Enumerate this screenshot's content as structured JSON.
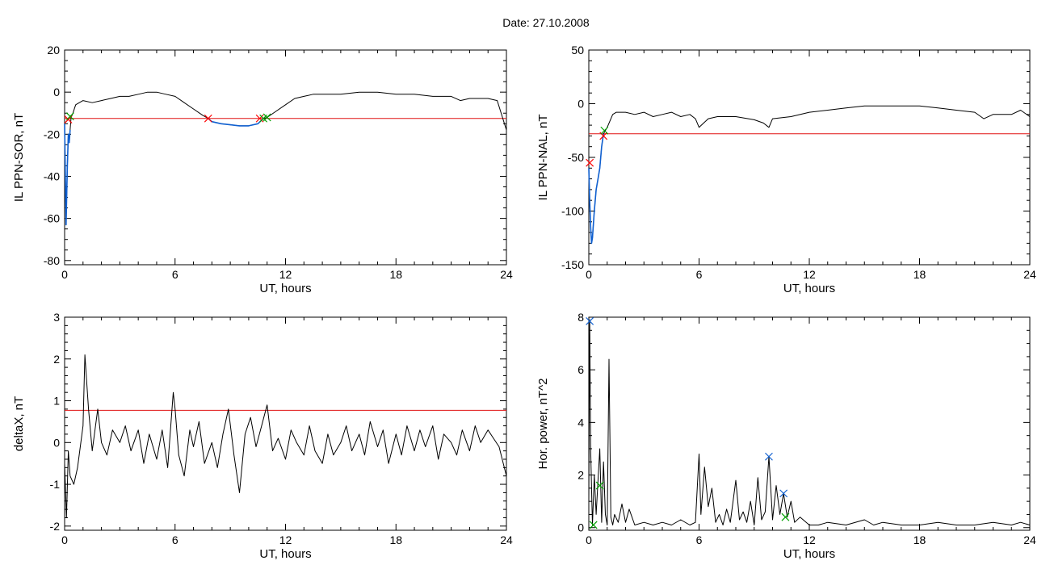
{
  "page": {
    "title": "Date:  27.10.2008"
  },
  "chart_data": [
    {
      "type": "line",
      "xlabel": "UT, hours",
      "ylabel": "IL PPN-SOR, nT",
      "xlim": [
        0,
        24
      ],
      "ylim": [
        -82,
        20
      ],
      "xticks": [
        0,
        6,
        12,
        18,
        24
      ],
      "yticks": [
        -80,
        -60,
        -40,
        -20,
        0,
        20
      ],
      "grid": false,
      "threshold": -12.5,
      "series": [
        {
          "role": "main",
          "color": "#000000",
          "x": [
            0.0,
            0.08,
            0.15,
            0.2,
            0.25,
            0.3,
            0.35,
            0.45,
            0.6,
            0.8,
            1.0,
            1.5,
            2.0,
            2.5,
            3.0,
            3.5,
            4.0,
            4.5,
            5.0,
            5.5,
            6.0,
            6.5,
            7.0,
            7.5,
            7.8,
            8.0,
            8.5,
            9.0,
            9.5,
            10.0,
            10.5,
            10.8,
            11.0,
            11.5,
            12.0,
            12.5,
            13.0,
            13.5,
            14.0,
            15.0,
            16.0,
            17.0,
            18.0,
            19.0,
            20.0,
            21.0,
            21.5,
            22.0,
            23.0,
            23.5,
            24.0
          ],
          "y": [
            -15,
            -63,
            -35,
            -20,
            -24,
            -18,
            -12,
            -10,
            -6,
            -5,
            -4,
            -5,
            -4,
            -3,
            -2,
            -2,
            -1,
            0,
            0,
            -1,
            -2,
            -5,
            -8,
            -11,
            -12.5,
            -14,
            -15,
            -15.5,
            -16,
            -16,
            -15,
            -12.5,
            -12,
            -9,
            -6,
            -3,
            -2,
            -1,
            -1,
            -1,
            0,
            0,
            -1,
            -1,
            -2,
            -2,
            -4,
            -3,
            -3,
            -4,
            -18
          ]
        },
        {
          "role": "selection",
          "color": "#1060d0",
          "x": [
            0.0,
            0.08,
            0.15,
            0.2,
            0.25,
            0.3
          ],
          "y": [
            -15,
            -63,
            -35,
            -20,
            -24,
            -18
          ]
        },
        {
          "role": "selection",
          "color": "#1060d0",
          "x": [
            7.8,
            8.0,
            8.5,
            9.0,
            9.5,
            10.0,
            10.5,
            10.8
          ],
          "y": [
            -12.5,
            -14,
            -15,
            -15.5,
            -16,
            -16,
            -15,
            -12.5
          ]
        }
      ],
      "markers": [
        {
          "x": 0.2,
          "y": -13,
          "color": "#ff0000"
        },
        {
          "x": 0.3,
          "y": -11.5,
          "color": "#00a000"
        },
        {
          "x": 7.8,
          "y": -12.5,
          "color": "#ff0000"
        },
        {
          "x": 10.6,
          "y": -12.5,
          "color": "#ff0000"
        },
        {
          "x": 10.8,
          "y": -12.5,
          "color": "#00a000"
        },
        {
          "x": 11.0,
          "y": -12,
          "color": "#00a000"
        }
      ]
    },
    {
      "type": "line",
      "xlabel": "UT, hours",
      "ylabel": "IL PPN-NAL, nT",
      "xlim": [
        0,
        24
      ],
      "ylim": [
        -150,
        50
      ],
      "xticks": [
        0,
        6,
        12,
        18,
        24
      ],
      "yticks": [
        -150,
        -100,
        -50,
        0,
        50
      ],
      "grid": false,
      "threshold": -28,
      "series": [
        {
          "role": "main",
          "color": "#000000",
          "x": [
            0.0,
            0.05,
            0.1,
            0.15,
            0.2,
            0.3,
            0.4,
            0.5,
            0.6,
            0.7,
            0.8,
            0.9,
            1.0,
            1.3,
            1.5,
            2.0,
            2.5,
            3.0,
            3.5,
            4.0,
            4.5,
            5.0,
            5.5,
            5.8,
            6.0,
            6.5,
            7.0,
            8.0,
            9.0,
            9.5,
            9.8,
            10.0,
            11.0,
            12.0,
            13.0,
            14.0,
            15.0,
            16.0,
            17.0,
            18.0,
            19.0,
            20.0,
            21.0,
            21.5,
            22.0,
            23.0,
            23.5,
            24.0
          ],
          "y": [
            -60,
            -90,
            -115,
            -130,
            -125,
            -100,
            -80,
            -70,
            -60,
            -40,
            -28,
            -25,
            -22,
            -10,
            -8,
            -8,
            -10,
            -8,
            -12,
            -10,
            -8,
            -12,
            -10,
            -14,
            -22,
            -14,
            -12,
            -12,
            -15,
            -18,
            -22,
            -14,
            -12,
            -8,
            -6,
            -4,
            -2,
            -2,
            -2,
            -2,
            -4,
            -6,
            -8,
            -14,
            -10,
            -10,
            -6,
            -12
          ]
        },
        {
          "role": "selection",
          "color": "#1060d0",
          "x": [
            0.0,
            0.05,
            0.1,
            0.15,
            0.2,
            0.3,
            0.4,
            0.5,
            0.6,
            0.7,
            0.8
          ],
          "y": [
            -60,
            -90,
            -115,
            -130,
            -125,
            -100,
            -80,
            -70,
            -60,
            -40,
            -28
          ]
        }
      ],
      "markers": [
        {
          "x": 0.05,
          "y": -55,
          "color": "#ff0000"
        },
        {
          "x": 0.8,
          "y": -30,
          "color": "#ff0000"
        },
        {
          "x": 0.85,
          "y": -25,
          "color": "#00a000"
        }
      ]
    },
    {
      "type": "line",
      "xlabel": "UT, hours",
      "ylabel": "deltaX, nT",
      "xlim": [
        0,
        24
      ],
      "ylim": [
        -2.1,
        3
      ],
      "xticks": [
        0,
        6,
        12,
        18,
        24
      ],
      "yticks": [
        -2,
        -1,
        0,
        1,
        2,
        3
      ],
      "grid": false,
      "threshold": 0.77,
      "series": [
        {
          "role": "main",
          "color": "#000000",
          "x": [
            0.0,
            0.1,
            0.2,
            0.3,
            0.5,
            0.7,
            1.0,
            1.1,
            1.3,
            1.5,
            1.8,
            2.0,
            2.3,
            2.6,
            3.0,
            3.3,
            3.6,
            4.0,
            4.3,
            4.6,
            5.0,
            5.3,
            5.6,
            5.9,
            6.0,
            6.2,
            6.5,
            6.8,
            7.0,
            7.3,
            7.6,
            8.0,
            8.3,
            8.6,
            8.9,
            9.2,
            9.5,
            9.8,
            10.1,
            10.4,
            10.7,
            11.0,
            11.3,
            11.6,
            12.0,
            12.3,
            12.6,
            13.0,
            13.3,
            13.6,
            14.0,
            14.3,
            14.6,
            15.0,
            15.3,
            15.6,
            16.0,
            16.3,
            16.6,
            17.0,
            17.3,
            17.6,
            18.0,
            18.3,
            18.6,
            19.0,
            19.3,
            19.6,
            20.0,
            20.3,
            20.6,
            21.0,
            21.3,
            21.6,
            22.0,
            22.3,
            22.6,
            23.0,
            23.3,
            23.6,
            24.0
          ],
          "y": [
            -0.5,
            -1.8,
            -0.2,
            -0.8,
            -1.0,
            -0.6,
            0.4,
            2.1,
            0.8,
            -0.2,
            0.8,
            0.0,
            -0.3,
            0.3,
            0.0,
            0.4,
            -0.2,
            0.3,
            -0.5,
            0.2,
            -0.4,
            0.3,
            -0.6,
            1.2,
            0.8,
            -0.3,
            -0.8,
            0.3,
            -0.1,
            0.5,
            -0.5,
            0.0,
            -0.6,
            0.2,
            0.8,
            -0.3,
            -1.2,
            0.2,
            0.6,
            -0.1,
            0.4,
            0.9,
            -0.2,
            0.1,
            -0.4,
            0.3,
            0.0,
            -0.3,
            0.4,
            -0.2,
            -0.5,
            0.2,
            -0.3,
            0.0,
            0.4,
            -0.2,
            0.2,
            -0.3,
            0.5,
            -0.1,
            0.3,
            -0.5,
            0.2,
            -0.3,
            0.4,
            -0.2,
            0.3,
            -0.1,
            0.4,
            -0.4,
            0.2,
            0.0,
            -0.3,
            0.3,
            -0.2,
            0.4,
            0.0,
            0.3,
            0.1,
            -0.1,
            -0.8
          ]
        }
      ],
      "markers": []
    },
    {
      "type": "line",
      "xlabel": "UT, hours",
      "ylabel": "Hor. power, nT^2",
      "xlim": [
        0,
        24
      ],
      "ylim": [
        -0.1,
        8
      ],
      "xticks": [
        0,
        6,
        12,
        18,
        24
      ],
      "yticks": [
        0,
        2,
        4,
        6,
        8
      ],
      "grid": false,
      "threshold": null,
      "series": [
        {
          "role": "main",
          "color": "#000000",
          "x": [
            0.0,
            0.05,
            0.1,
            0.15,
            0.2,
            0.3,
            0.4,
            0.5,
            0.6,
            0.7,
            0.8,
            0.9,
            1.0,
            1.1,
            1.2,
            1.3,
            1.4,
            1.6,
            1.8,
            2.0,
            2.2,
            2.5,
            3.0,
            3.5,
            4.0,
            4.5,
            5.0,
            5.5,
            5.8,
            6.0,
            6.1,
            6.3,
            6.5,
            6.7,
            6.9,
            7.1,
            7.3,
            7.5,
            7.7,
            8.0,
            8.2,
            8.4,
            8.6,
            8.8,
            9.0,
            9.2,
            9.4,
            9.6,
            9.8,
            10.0,
            10.2,
            10.4,
            10.6,
            10.8,
            11.0,
            11.2,
            11.5,
            12.0,
            12.5,
            13.0,
            14.0,
            15.0,
            15.5,
            16.0,
            17.0,
            18.0,
            19.0,
            20.0,
            21.0,
            22.0,
            23.0,
            23.5,
            24.0
          ],
          "y": [
            1.0,
            7.9,
            3.0,
            1.5,
            0.1,
            2.0,
            0.5,
            1.8,
            3.0,
            0.2,
            2.5,
            0.5,
            0.1,
            6.4,
            0.4,
            0.1,
            0.5,
            0.2,
            0.9,
            0.2,
            0.7,
            0.1,
            0.2,
            0.1,
            0.2,
            0.1,
            0.3,
            0.1,
            0.2,
            2.8,
            0.5,
            2.3,
            0.8,
            1.5,
            0.2,
            0.5,
            0.1,
            0.7,
            0.2,
            1.8,
            0.3,
            0.6,
            0.2,
            1.0,
            0.1,
            1.9,
            0.3,
            0.6,
            2.7,
            0.3,
            1.6,
            0.5,
            1.3,
            0.4,
            1.0,
            0.2,
            0.4,
            0.1,
            0.1,
            0.2,
            0.1,
            0.3,
            0.1,
            0.2,
            0.1,
            0.1,
            0.2,
            0.1,
            0.1,
            0.2,
            0.1,
            0.2,
            0.1
          ]
        }
      ],
      "markers": [
        {
          "x": 0.05,
          "y": 7.85,
          "color": "#1060d0"
        },
        {
          "x": 0.25,
          "y": 0.1,
          "color": "#00a000"
        },
        {
          "x": 0.6,
          "y": 1.6,
          "color": "#00a000"
        },
        {
          "x": 9.8,
          "y": 2.7,
          "color": "#1060d0"
        },
        {
          "x": 10.6,
          "y": 1.3,
          "color": "#1060d0"
        },
        {
          "x": 10.7,
          "y": 0.4,
          "color": "#00a000"
        }
      ]
    }
  ]
}
